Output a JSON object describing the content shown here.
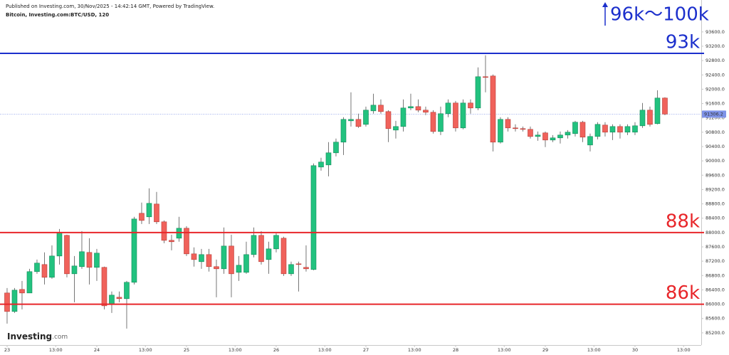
{
  "header": {
    "published": "Published on Investing.com, 30/Nov/2025 - 14:42:14 GMT, Powered by TradingView.",
    "symbol": "Bitcoin, Investing.com:BTC/USD, 120"
  },
  "logo": [
    "Investing",
    ".com"
  ],
  "chart_data": {
    "type": "candlestick",
    "up_color": "#22c27f",
    "down_color": "#f0625b",
    "xlim": [
      -0.95,
      92.86
    ],
    "ylim": [
      84860,
      94490
    ],
    "xticks": [
      {
        "value": 0,
        "label": "23"
      },
      {
        "value": 6.5,
        "label": "13:00"
      },
      {
        "value": 12,
        "label": "24"
      },
      {
        "value": 18.5,
        "label": "13:00"
      },
      {
        "value": 24,
        "label": "25"
      },
      {
        "value": 30.5,
        "label": "13:00"
      },
      {
        "value": 36,
        "label": "26"
      },
      {
        "value": 42.5,
        "label": "13:00"
      },
      {
        "value": 48,
        "label": "27"
      },
      {
        "value": 54.5,
        "label": "13:00"
      },
      {
        "value": 60,
        "label": "28"
      },
      {
        "value": 66.5,
        "label": "13:00"
      },
      {
        "value": 72,
        "label": "29"
      },
      {
        "value": 78.5,
        "label": "13:00"
      },
      {
        "value": 84,
        "label": "30"
      },
      {
        "value": 90.5,
        "label": "13:00"
      }
    ],
    "yticks": [
      {
        "value": 85200,
        "label": "85200.0"
      },
      {
        "value": 85600,
        "label": "85600.0"
      },
      {
        "value": 86000,
        "label": "86000.0"
      },
      {
        "value": 86400,
        "label": "86400.0"
      },
      {
        "value": 86800,
        "label": "86800.0"
      },
      {
        "value": 87200,
        "label": "87200.0"
      },
      {
        "value": 87600,
        "label": "87600.0"
      },
      {
        "value": 88000,
        "label": "88000.0"
      },
      {
        "value": 88400,
        "label": "88400.0"
      },
      {
        "value": 88800,
        "label": "88800.0"
      },
      {
        "value": 89200,
        "label": "89200.0"
      },
      {
        "value": 89600,
        "label": "89600.0"
      },
      {
        "value": 90000,
        "label": "90000.0"
      },
      {
        "value": 90400,
        "label": "90400.0"
      },
      {
        "value": 90800,
        "label": "90800.0"
      },
      {
        "value": 91200,
        "label": "91200.0"
      },
      {
        "value": 91600,
        "label": "91600.0"
      },
      {
        "value": 92000,
        "label": "92000.0"
      },
      {
        "value": 92400,
        "label": "92400.0"
      },
      {
        "value": 92800,
        "label": "92800.0"
      },
      {
        "value": 93200,
        "label": "93200.0"
      },
      {
        "value": 93600,
        "label": "93600.0"
      }
    ],
    "open": [
      86313,
      85797,
      86412,
      86313,
      86909,
      87107,
      86750,
      87345,
      87921,
      86849,
      87048,
      87445,
      87028,
      87028,
      85995,
      86194,
      86154,
      86611,
      88537,
      88438,
      88795,
      88299,
      87782,
      87842,
      88120,
      87405,
      87187,
      87385,
      87048,
      86988,
      87623,
      86889,
      86889,
      87385,
      87921,
      87246,
      87544,
      87842,
      86849,
      87127,
      87028,
      86968,
      89828,
      89887,
      90225,
      90523,
      91118,
      91158,
      91019,
      91396,
      91555,
      91376,
      90860,
      90959,
      91476,
      91515,
      91416,
      91357,
      90820,
      91317,
      91615,
      90920,
      91615,
      91476,
      92349,
      92369,
      90523,
      91158,
      90920,
      90900,
      90880,
      90681,
      90781,
      90582,
      90642,
      90721,
      90761,
      91079,
      90443,
      90681,
      90999,
      90801,
      90959,
      90801,
      90801,
      90979,
      91416,
      91039,
      91754
    ],
    "high": [
      86452,
      86452,
      86650,
      86988,
      87246,
      87445,
      87643,
      88100,
      87941,
      87345,
      88040,
      87842,
      87544,
      87048,
      86353,
      86353,
      86650,
      88438,
      88835,
      89232,
      89133,
      88338,
      87941,
      88438,
      88179,
      87584,
      87544,
      87544,
      87246,
      88140,
      87941,
      87345,
      87743,
      88140,
      88040,
      87743,
      87981,
      87882,
      87187,
      87187,
      87643,
      89927,
      90086,
      90523,
      90622,
      91218,
      91913,
      91317,
      91515,
      91873,
      91714,
      91416,
      91118,
      91714,
      91873,
      91714,
      91515,
      91416,
      91515,
      91714,
      91674,
      91714,
      91714,
      92608,
      92945,
      92409,
      91218,
      91218,
      91019,
      90959,
      90959,
      90820,
      90820,
      90721,
      90820,
      90860,
      91118,
      91118,
      90761,
      91079,
      91079,
      91019,
      91019,
      91019,
      91079,
      91615,
      91515,
      91972,
      91774
    ],
    "low": [
      85459,
      85757,
      85856,
      86313,
      86849,
      86551,
      86710,
      87107,
      86750,
      86055,
      86988,
      86551,
      86650,
      85856,
      85757,
      86055,
      85320,
      86551,
      88239,
      88239,
      88239,
      87703,
      87504,
      87743,
      87345,
      87048,
      86988,
      86909,
      86194,
      86849,
      86194,
      86650,
      86849,
      87306,
      87107,
      86849,
      87445,
      86789,
      86789,
      86353,
      86909,
      86948,
      89728,
      89569,
      90125,
      90165,
      90959,
      90920,
      90959,
      91317,
      91317,
      90523,
      90622,
      90820,
      91416,
      91357,
      91277,
      90761,
      90721,
      91218,
      90820,
      90880,
      91317,
      91416,
      91913,
      90264,
      90483,
      90820,
      90820,
      90820,
      90622,
      90562,
      90384,
      90523,
      90483,
      90622,
      90681,
      90523,
      90264,
      90602,
      90681,
      90582,
      90622,
      90721,
      90721,
      90920,
      90959,
      91019,
      91277
    ],
    "close": [
      85797,
      86392,
      86313,
      86909,
      87147,
      86750,
      87345,
      88001,
      86849,
      87067,
      87465,
      87028,
      87425,
      85955,
      86253,
      86154,
      86611,
      88378,
      88338,
      88815,
      88299,
      87782,
      87743,
      88120,
      87405,
      87246,
      87385,
      87048,
      86988,
      87623,
      86849,
      87087,
      87385,
      87921,
      87187,
      87544,
      87921,
      86849,
      87107,
      87107,
      86988,
      89867,
      89967,
      90225,
      90523,
      91158,
      91158,
      90959,
      91416,
      91555,
      91376,
      90900,
      90959,
      91476,
      91515,
      91416,
      91357,
      90820,
      91317,
      91615,
      90920,
      91615,
      91476,
      92349,
      92330,
      90523,
      91158,
      90920,
      90900,
      90880,
      90681,
      90721,
      90582,
      90642,
      90721,
      90801,
      91079,
      90662,
      90681,
      91019,
      90801,
      90959,
      90801,
      90959,
      90979,
      91416,
      91019,
      91754,
      91306.2
    ],
    "levels": [
      {
        "value": 93000,
        "label": "93k",
        "color": "#1b2fcc"
      },
      {
        "value": 88000,
        "label": "88k",
        "color": "#e8262a"
      },
      {
        "value": 86000,
        "label": "86k",
        "color": "#e8262a"
      }
    ],
    "target": {
      "label": "96k〜100k",
      "color": "#1b2fcc"
    },
    "last_price": 91306.2,
    "last_price_color": "#7f93e8"
  }
}
